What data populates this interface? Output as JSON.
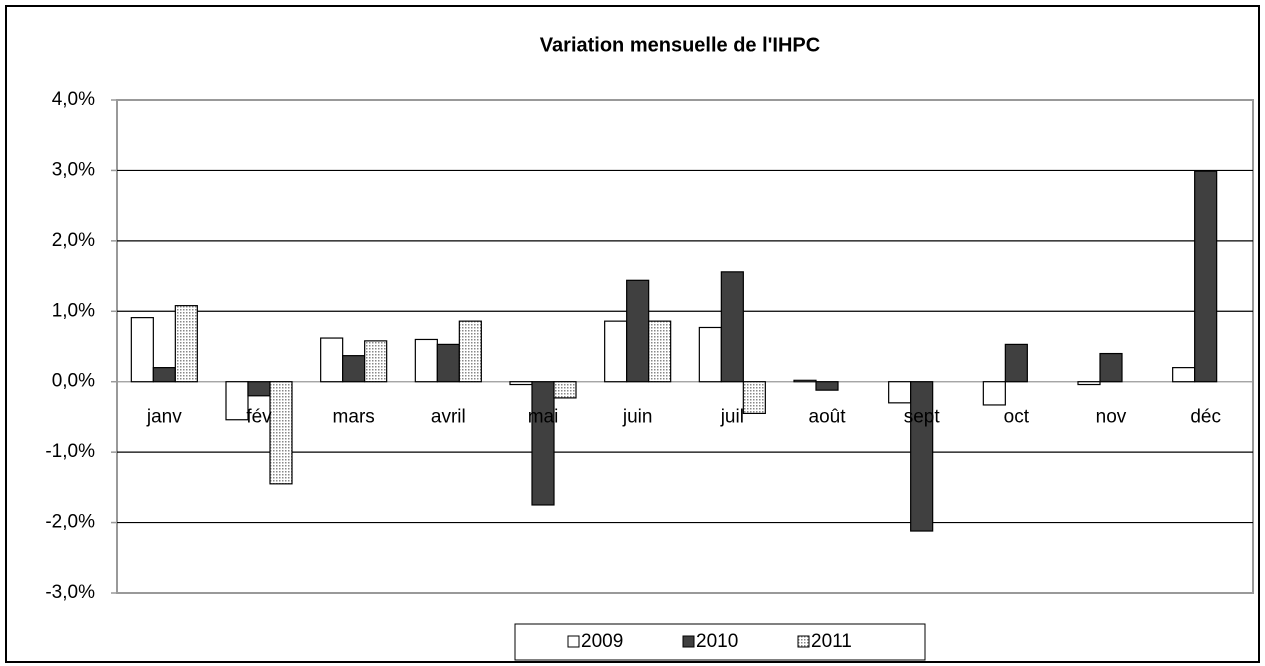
{
  "chart_data": {
    "type": "bar",
    "title": "Variation mensuelle de l'IHPC",
    "categories": [
      "janv",
      "fév",
      "mars",
      "avril",
      "mai",
      "juin",
      "juil",
      "août",
      "sept",
      "oct",
      "nov",
      "déc"
    ],
    "series": [
      {
        "name": "2009",
        "color": "#ffffff",
        "values": [
          0.91,
          -0.54,
          0.62,
          0.6,
          -0.04,
          0.86,
          0.77,
          0.02,
          -0.3,
          -0.33,
          -0.04,
          0.2
        ]
      },
      {
        "name": "2010",
        "color": "#404040",
        "values": [
          0.2,
          -0.2,
          0.37,
          0.53,
          -1.75,
          1.44,
          1.56,
          -0.12,
          -2.12,
          0.53,
          0.4,
          2.99
        ]
      },
      {
        "name": "2011",
        "color": "#d4d4d4",
        "values": [
          1.08,
          -1.45,
          0.58,
          0.86,
          -0.23,
          0.86,
          -0.45,
          null,
          null,
          null,
          null,
          null
        ]
      }
    ],
    "ylim": [
      -3,
      4
    ],
    "yticks": [
      {
        "value": -3,
        "label": "-3,0%"
      },
      {
        "value": -2,
        "label": "-2,0%"
      },
      {
        "value": -1,
        "label": "-1,0%"
      },
      {
        "value": 0,
        "label": "0,0%"
      },
      {
        "value": 1,
        "label": "1,0%"
      },
      {
        "value": 2,
        "label": "2,0%"
      },
      {
        "value": 3,
        "label": "3,0%"
      },
      {
        "value": 4,
        "label": "4,0%"
      }
    ],
    "grid": true,
    "legend": "bottom"
  }
}
